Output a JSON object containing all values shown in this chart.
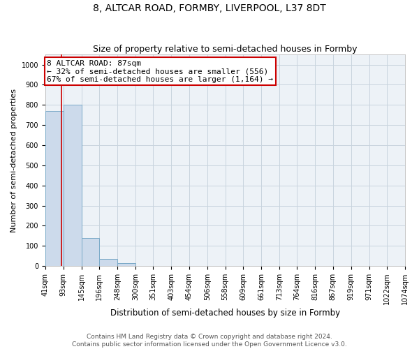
{
  "title": "8, ALTCAR ROAD, FORMBY, LIVERPOOL, L37 8DT",
  "subtitle": "Size of property relative to semi-detached houses in Formby",
  "xlabel": "Distribution of semi-detached houses by size in Formby",
  "ylabel": "Number of semi-detached properties",
  "footer_line1": "Contains HM Land Registry data © Crown copyright and database right 2024.",
  "footer_line2": "Contains public sector information licensed under the Open Government Licence v3.0.",
  "bin_edges": [
    41,
    93,
    145,
    196,
    248,
    300,
    351,
    403,
    454,
    506,
    558,
    609,
    661,
    713,
    764,
    816,
    867,
    919,
    971,
    1022,
    1074
  ],
  "bar_heights": [
    770,
    800,
    140,
    35,
    15,
    0,
    0,
    0,
    0,
    0,
    0,
    0,
    0,
    0,
    0,
    0,
    0,
    0,
    0,
    0
  ],
  "bar_color": "#ccdaeb",
  "bar_edge_color": "#7aaac8",
  "property_size": 87,
  "property_line_color": "#cc0000",
  "annotation_line1": "8 ALTCAR ROAD: 87sqm",
  "annotation_line2": "← 32% of semi-detached houses are smaller (556)",
  "annotation_line3": "67% of semi-detached houses are larger (1,164) →",
  "annotation_box_color": "white",
  "annotation_box_edge_color": "#cc0000",
  "ylim": [
    0,
    1050
  ],
  "yticks": [
    0,
    100,
    200,
    300,
    400,
    500,
    600,
    700,
    800,
    900,
    1000
  ],
  "grid_color": "#c8d4de",
  "background_color": "#edf2f7",
  "title_fontsize": 10,
  "subtitle_fontsize": 9,
  "xlabel_fontsize": 8.5,
  "ylabel_fontsize": 8,
  "tick_fontsize": 7,
  "annotation_fontsize": 8,
  "footer_fontsize": 6.5
}
